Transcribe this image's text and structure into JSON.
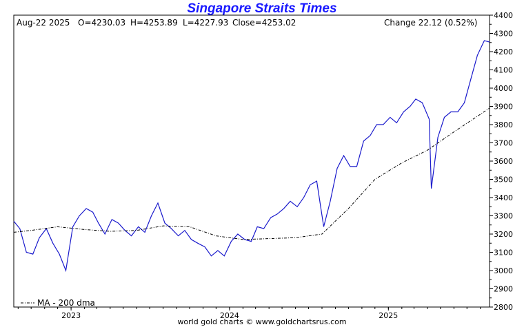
{
  "chart_data": {
    "type": "line",
    "title": "Singapore Straits Times",
    "footer": "world gold charts © www.goldchartsrus.com",
    "info": {
      "date": "Aug-22  2025",
      "open": "O=4230.03",
      "high": "H=4253.89",
      "low": "L=4227.93",
      "close": "Close=4253.02",
      "change": "Change 22.12 (0.52%)"
    },
    "legend": "MA - 200 dma",
    "ylim": [
      2800,
      4400
    ],
    "y_ticks": [
      2800,
      2900,
      3000,
      3100,
      3200,
      3300,
      3400,
      3500,
      3600,
      3700,
      3800,
      3900,
      4000,
      4100,
      4200,
      4300,
      4400
    ],
    "x_range": [
      "2022-08-22",
      "2025-08-22"
    ],
    "x_ticks": [
      {
        "label": "2023",
        "date": "2023-01-01"
      },
      {
        "label": "2024",
        "date": "2024-01-01"
      },
      {
        "label": "2025",
        "date": "2025-01-01"
      }
    ],
    "colors": {
      "price": "#1a1acc",
      "ma": "#000000",
      "title": "#1a1aff"
    },
    "series": [
      {
        "name": "Price",
        "style": "solid",
        "x": [
          "2022-08-22",
          "2022-09-05",
          "2022-09-20",
          "2022-10-05",
          "2022-10-20",
          "2022-11-05",
          "2022-11-20",
          "2022-12-05",
          "2022-12-20",
          "2023-01-05",
          "2023-01-20",
          "2023-02-05",
          "2023-02-20",
          "2023-03-05",
          "2023-03-20",
          "2023-04-05",
          "2023-04-20",
          "2023-05-05",
          "2023-05-20",
          "2023-06-05",
          "2023-06-20",
          "2023-07-05",
          "2023-07-20",
          "2023-08-05",
          "2023-08-20",
          "2023-09-05",
          "2023-09-20",
          "2023-10-05",
          "2023-10-20",
          "2023-11-05",
          "2023-11-20",
          "2023-12-05",
          "2023-12-20",
          "2024-01-05",
          "2024-01-20",
          "2024-02-05",
          "2024-02-20",
          "2024-03-05",
          "2024-03-20",
          "2024-04-05",
          "2024-04-20",
          "2024-05-05",
          "2024-05-20",
          "2024-06-05",
          "2024-06-20",
          "2024-07-05",
          "2024-07-20",
          "2024-08-05",
          "2024-08-20",
          "2024-09-05",
          "2024-09-20",
          "2024-10-05",
          "2024-10-20",
          "2024-11-05",
          "2024-11-20",
          "2024-12-05",
          "2024-12-20",
          "2025-01-05",
          "2025-01-20",
          "2025-02-05",
          "2025-02-20",
          "2025-03-05",
          "2025-03-20",
          "2025-04-05",
          "2025-04-10",
          "2025-04-25",
          "2025-05-10",
          "2025-05-25",
          "2025-06-10",
          "2025-06-25",
          "2025-07-10",
          "2025-07-25",
          "2025-08-10",
          "2025-08-22"
        ],
        "values": [
          3270,
          3230,
          3100,
          3090,
          3180,
          3230,
          3150,
          3090,
          3000,
          3240,
          3300,
          3340,
          3320,
          3260,
          3200,
          3280,
          3260,
          3220,
          3190,
          3240,
          3210,
          3300,
          3370,
          3260,
          3230,
          3190,
          3220,
          3170,
          3150,
          3130,
          3080,
          3110,
          3080,
          3160,
          3200,
          3170,
          3160,
          3240,
          3230,
          3290,
          3310,
          3340,
          3380,
          3350,
          3400,
          3470,
          3490,
          3240,
          3380,
          3560,
          3630,
          3570,
          3570,
          3710,
          3740,
          3800,
          3800,
          3840,
          3810,
          3870,
          3900,
          3940,
          3920,
          3830,
          3450,
          3730,
          3840,
          3870,
          3870,
          3920,
          4050,
          4180,
          4260,
          4253
        ]
      },
      {
        "name": "MA - 200 dma",
        "style": "dash-dot",
        "x": [
          "2022-08-22",
          "2022-10-01",
          "2022-12-01",
          "2023-02-01",
          "2023-04-01",
          "2023-06-01",
          "2023-08-01",
          "2023-10-01",
          "2023-12-01",
          "2024-02-01",
          "2024-04-01",
          "2024-06-01",
          "2024-08-01",
          "2024-10-01",
          "2024-12-01",
          "2025-02-01",
          "2025-04-01",
          "2025-06-01",
          "2025-08-22"
        ],
        "values": [
          3210,
          3220,
          3240,
          3225,
          3215,
          3220,
          3245,
          3240,
          3190,
          3170,
          3175,
          3180,
          3200,
          3340,
          3500,
          3590,
          3660,
          3760,
          3890
        ]
      }
    ]
  }
}
